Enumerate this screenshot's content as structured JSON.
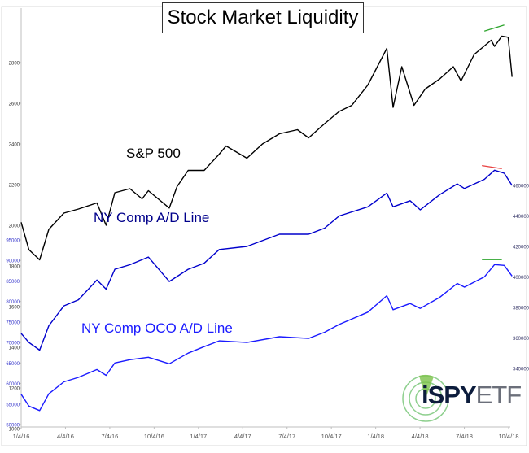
{
  "chart_data": {
    "type": "line",
    "title": "Stock Market Liquidity",
    "x_tick_labels": [
      "1/4/16",
      "4/4/16",
      "7/4/16",
      "10/4/16",
      "1/4/17",
      "4/4/17",
      "7/4/17",
      "10/4/17",
      "1/4/18",
      "4/4/18",
      "7/4/18",
      "10/4/18"
    ],
    "x_range": [
      "2016-01-04",
      "2018-10-04"
    ],
    "axes": {
      "left_sp": {
        "ticks": [
          "1000",
          "1200",
          "1400",
          "1600",
          "1800",
          "2000",
          "2200",
          "2400",
          "2600",
          "2800"
        ],
        "range": [
          1000,
          3060
        ],
        "color": "#333333"
      },
      "left_oco": {
        "ticks": [
          "50000",
          "55000",
          "60000",
          "65000",
          "70000",
          "75000",
          "80000",
          "85000",
          "90000",
          "95000"
        ],
        "range": [
          50000,
          95000
        ],
        "color": "#3333cc"
      },
      "right_ad": {
        "ticks": [
          "340000",
          "360000",
          "380000",
          "400000",
          "420000",
          "440000",
          "460000"
        ],
        "range": [
          340000,
          460000
        ],
        "color": "#333366"
      }
    },
    "series": [
      {
        "name": "S&P 500",
        "axis": "left_sp",
        "color": "#000000",
        "x": [
          "2016-01-04",
          "2016-01-20",
          "2016-02-11",
          "2016-03-01",
          "2016-04-01",
          "2016-05-01",
          "2016-06-08",
          "2016-06-27",
          "2016-07-15",
          "2016-08-15",
          "2016-09-09",
          "2016-09-22",
          "2016-11-04",
          "2016-11-20",
          "2016-12-13",
          "2017-01-15",
          "2017-02-15",
          "2017-03-01",
          "2017-04-13",
          "2017-05-15",
          "2017-06-19",
          "2017-07-26",
          "2017-08-18",
          "2017-09-20",
          "2017-10-20",
          "2017-11-15",
          "2017-12-18",
          "2018-01-26",
          "2018-02-08",
          "2018-02-26",
          "2018-03-23",
          "2018-04-15",
          "2018-05-15",
          "2018-06-12",
          "2018-06-28",
          "2018-07-25",
          "2018-08-29",
          "2018-09-05",
          "2018-09-20",
          "2018-10-03",
          "2018-10-11"
        ],
        "values": [
          2015,
          1880,
          1830,
          1980,
          2060,
          2080,
          2110,
          2000,
          2160,
          2180,
          2130,
          2170,
          2085,
          2190,
          2270,
          2270,
          2350,
          2390,
          2330,
          2400,
          2450,
          2470,
          2430,
          2500,
          2560,
          2590,
          2690,
          2870,
          2580,
          2780,
          2590,
          2670,
          2720,
          2780,
          2710,
          2840,
          2910,
          2880,
          2930,
          2925,
          2730
        ]
      },
      {
        "name": "NY Comp A/D Line",
        "axis": "right_ad",
        "color": "#0000cc",
        "x": [
          "2016-01-04",
          "2016-01-20",
          "2016-02-11",
          "2016-03-01",
          "2016-04-01",
          "2016-05-01",
          "2016-06-08",
          "2016-06-27",
          "2016-07-15",
          "2016-08-15",
          "2016-09-22",
          "2016-11-04",
          "2016-12-13",
          "2017-01-15",
          "2017-02-15",
          "2017-04-13",
          "2017-06-19",
          "2017-08-18",
          "2017-09-20",
          "2017-10-20",
          "2017-12-18",
          "2018-01-26",
          "2018-02-08",
          "2018-03-15",
          "2018-04-05",
          "2018-05-15",
          "2018-06-20",
          "2018-07-05",
          "2018-08-15",
          "2018-09-05",
          "2018-09-25",
          "2018-10-11"
        ],
        "values": [
          363000,
          357000,
          352000,
          368000,
          381000,
          385000,
          398000,
          392000,
          405000,
          408000,
          413000,
          397000,
          405000,
          409000,
          418000,
          420000,
          428000,
          428000,
          432000,
          440000,
          446000,
          455000,
          446000,
          450000,
          444000,
          454000,
          461000,
          458000,
          464000,
          470000,
          468000,
          460000
        ]
      },
      {
        "name": "NY Comp OCO A/D Line",
        "axis": "left_oco",
        "color": "#1a1aff",
        "x": [
          "2016-01-04",
          "2016-01-20",
          "2016-02-11",
          "2016-03-01",
          "2016-04-01",
          "2016-05-01",
          "2016-06-08",
          "2016-06-27",
          "2016-07-15",
          "2016-08-15",
          "2016-09-22",
          "2016-11-04",
          "2016-12-13",
          "2017-01-15",
          "2017-02-15",
          "2017-04-13",
          "2017-06-19",
          "2017-08-18",
          "2017-09-20",
          "2017-10-20",
          "2017-12-18",
          "2018-01-26",
          "2018-02-08",
          "2018-03-15",
          "2018-04-05",
          "2018-05-15",
          "2018-06-20",
          "2018-07-05",
          "2018-08-15",
          "2018-09-05",
          "2018-09-25",
          "2018-10-11"
        ],
        "values": [
          57400,
          54500,
          53400,
          57500,
          60400,
          61500,
          63400,
          62000,
          65000,
          65800,
          66400,
          64800,
          67400,
          69000,
          70400,
          70000,
          71400,
          71000,
          72500,
          74400,
          77400,
          81400,
          78000,
          79500,
          78300,
          81000,
          84400,
          83500,
          86000,
          89000,
          88800,
          86200
        ]
      }
    ],
    "annotations": [
      {
        "series": "S&P 500",
        "color": "#2ea52e",
        "x": [
          "2018-08-15",
          "2018-09-25"
        ],
        "values": [
          2955,
          2985
        ]
      },
      {
        "series": "NY Comp A/D Line",
        "color": "#e84040",
        "x": [
          "2018-08-10",
          "2018-09-20"
        ],
        "values": [
          473000,
          471000
        ]
      },
      {
        "series": "NY Comp OCO A/D Line",
        "color": "#2ea52e",
        "x": [
          "2018-08-10",
          "2018-09-20"
        ],
        "values": [
          90200,
          90200
        ]
      }
    ],
    "labels": {
      "sp": "S&P 500",
      "ad": "NY Comp A/D Line",
      "oco": "NY Comp OCO A/D Line"
    }
  },
  "logo": {
    "text_a": "iSPY",
    "text_b": "ETF"
  }
}
